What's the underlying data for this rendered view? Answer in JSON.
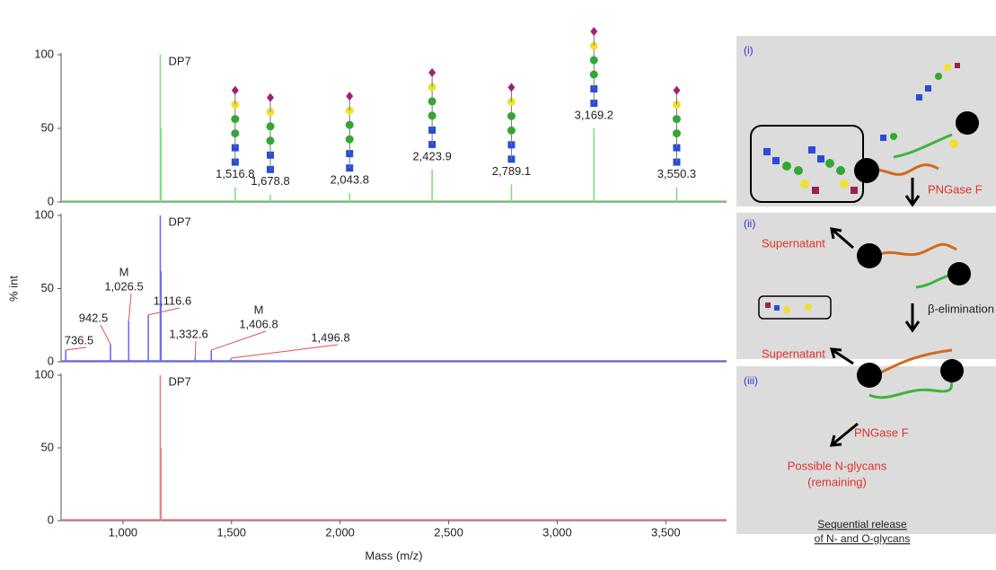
{
  "chart_data": [
    {
      "type": "stem",
      "color": "#7ee07e",
      "xlim": [
        715,
        3780
      ],
      "ylim": [
        0,
        100
      ],
      "yticks": [
        0,
        50,
        100
      ],
      "x": [
        1172,
        1175,
        1516.8,
        1678.8,
        2043.8,
        2423.9,
        2789.1,
        3169.2,
        3550.3
      ],
      "values": [
        100,
        50,
        10,
        5,
        6,
        22,
        12,
        50,
        10
      ],
      "annotations": [
        {
          "x": 1172,
          "label": "DP7"
        },
        {
          "x": 1516.8,
          "label": "1,516.8"
        },
        {
          "x": 1678.8,
          "label": "1,678.8"
        },
        {
          "x": 2043.8,
          "label": "2,043.8"
        },
        {
          "x": 2423.9,
          "label": "2,423.9"
        },
        {
          "x": 2789.1,
          "label": "2,789.1"
        },
        {
          "x": 3169.2,
          "label": "3,169.2"
        },
        {
          "x": 3550.3,
          "label": "3,550.3"
        }
      ]
    },
    {
      "type": "stem",
      "color": "#6b6bff",
      "xlim": [
        715,
        3780
      ],
      "ylim": [
        0,
        100
      ],
      "yticks": [
        0,
        50,
        100
      ],
      "ylabel": "% int",
      "x": [
        736.5,
        942.5,
        1026.5,
        1116.6,
        1172,
        1175,
        1332.6,
        1406.8,
        1496.8
      ],
      "values": [
        8,
        12,
        28,
        32,
        100,
        62,
        3,
        8,
        2
      ],
      "annotations": [
        {
          "x": 1172,
          "label": "DP7"
        },
        {
          "x": 736.5,
          "label": "736.5"
        },
        {
          "x": 942.5,
          "label": "942.5"
        },
        {
          "x": 1026.5,
          "label": "1,026.5",
          "note": "M"
        },
        {
          "x": 1116.6,
          "label": "1,116.6"
        },
        {
          "x": 1332.6,
          "label": "1,332.6"
        },
        {
          "x": 1406.8,
          "label": "1,406.8",
          "note": "M"
        },
        {
          "x": 1496.8,
          "label": "1,496.8"
        }
      ]
    },
    {
      "type": "stem",
      "color": "#f07f7f",
      "xlim": [
        715,
        3780
      ],
      "ylim": [
        0,
        100
      ],
      "yticks": [
        0,
        50,
        100
      ],
      "xlabel": "Mass (m/z)",
      "xticks": [
        {
          "value": 1000,
          "label": "1,000"
        },
        {
          "value": 1500,
          "label": "1,500"
        },
        {
          "value": 2000,
          "label": "2,000"
        },
        {
          "value": 2500,
          "label": "2,500"
        },
        {
          "value": 3000,
          "label": "3,000"
        },
        {
          "value": 3500,
          "label": "3,500"
        }
      ],
      "x": [
        1172,
        1175
      ],
      "values": [
        100,
        50
      ],
      "annotations": [
        {
          "x": 1172,
          "label": "DP7"
        }
      ]
    }
  ],
  "diagram": {
    "stages": [
      "(i)",
      "(ii)",
      "(iii)"
    ],
    "steps": [
      "PNGase F",
      "β-elimination",
      "PNGase F"
    ],
    "supernatants": [
      "Supernatant",
      "Supernatant"
    ],
    "result": [
      "Possible N-glycans",
      "(remaining)"
    ],
    "caption": [
      "Sequential release",
      "of N- and O-glycans"
    ]
  }
}
